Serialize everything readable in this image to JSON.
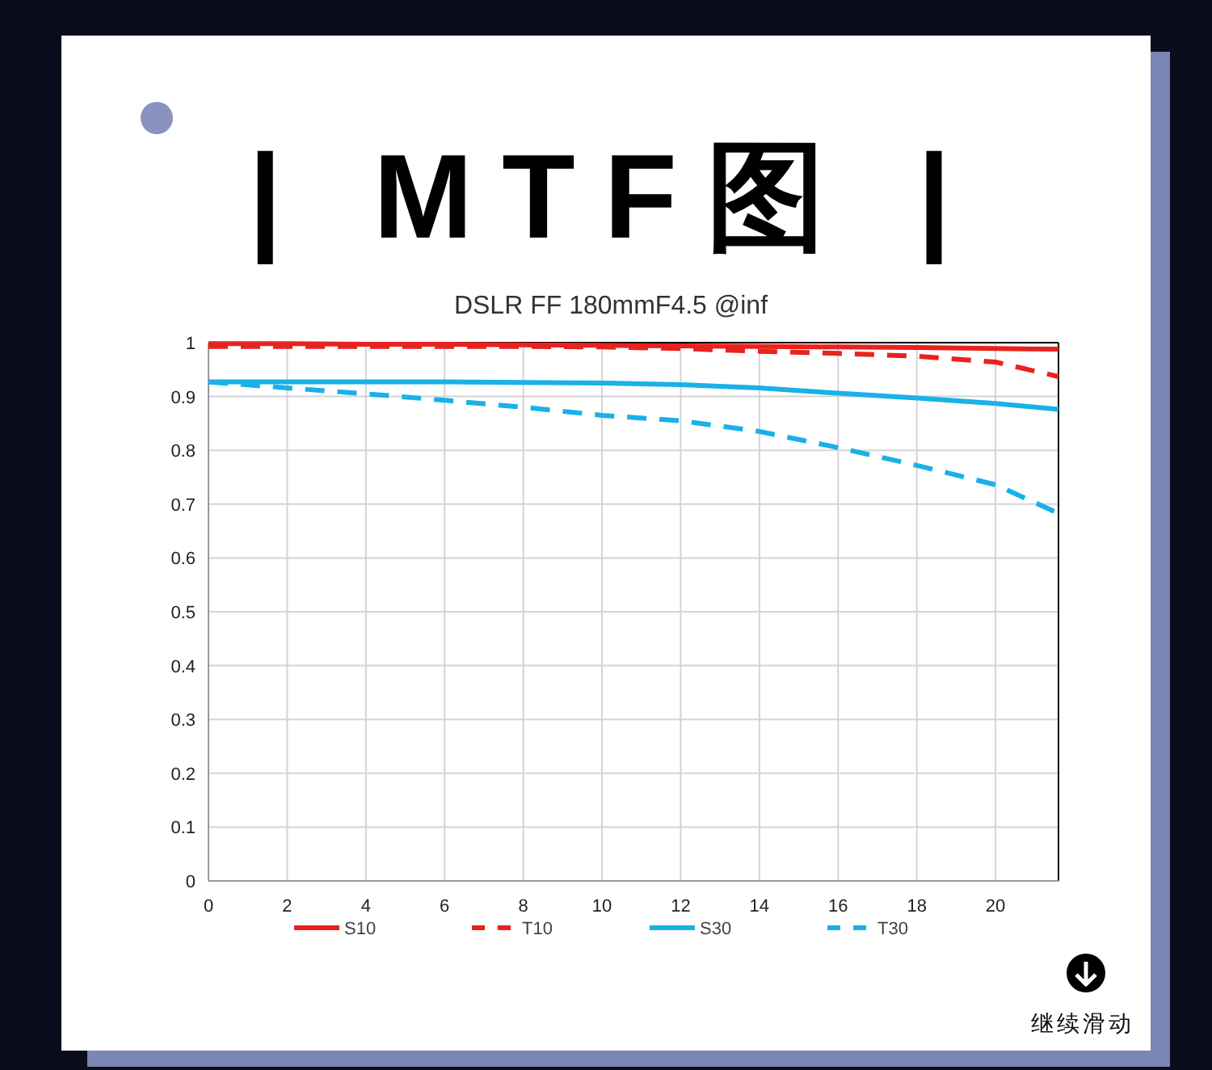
{
  "chart_data": {
    "type": "line",
    "title": "| MTF图 |",
    "subtitle": "DSLR FF 180mmF4.5 @inf",
    "annotations": [
      "继续滑动"
    ],
    "xlim": [
      0,
      21.6
    ],
    "xticks": [
      0,
      2,
      4,
      6,
      8,
      10,
      12,
      14,
      16,
      18,
      20
    ],
    "ylim": [
      0,
      1
    ],
    "yticks": [
      0,
      0.1,
      0.2,
      0.3,
      0.4,
      0.5,
      0.6,
      0.7,
      0.8,
      0.9,
      1
    ],
    "grid": true,
    "legend": "bottom",
    "marker": "none",
    "x": [
      0,
      2,
      4,
      6,
      8,
      10,
      12,
      14,
      16,
      18,
      20,
      21.6
    ],
    "series": [
      {
        "name": "S10",
        "color": "#e8231f",
        "line_style": "solid",
        "values": [
          0.998,
          0.998,
          0.997,
          0.997,
          0.996,
          0.995,
          0.994,
          0.993,
          0.992,
          0.991,
          0.989,
          0.988
        ]
      },
      {
        "name": "T10",
        "color": "#e8231f",
        "line_style": "dashed",
        "values": [
          0.993,
          0.993,
          0.993,
          0.993,
          0.993,
          0.992,
          0.989,
          0.984,
          0.98,
          0.975,
          0.964,
          0.937
        ]
      },
      {
        "name": "S30",
        "color": "#1ab0e8",
        "line_style": "solid",
        "values": [
          0.927,
          0.927,
          0.927,
          0.927,
          0.926,
          0.925,
          0.922,
          0.916,
          0.906,
          0.897,
          0.887,
          0.876
        ]
      },
      {
        "name": "T30",
        "color": "#1ab0e8",
        "line_style": "dashed",
        "values": [
          0.927,
          0.916,
          0.905,
          0.893,
          0.88,
          0.865,
          0.855,
          0.835,
          0.805,
          0.772,
          0.736,
          0.683
        ]
      }
    ]
  }
}
